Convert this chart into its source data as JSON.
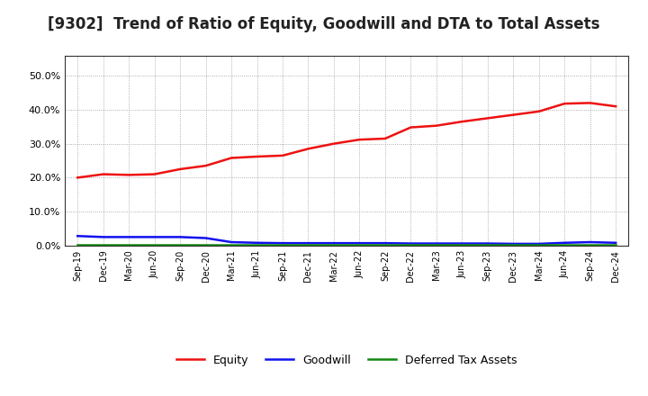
{
  "title": "[9302]  Trend of Ratio of Equity, Goodwill and DTA to Total Assets",
  "x_labels": [
    "Sep-19",
    "Dec-19",
    "Mar-20",
    "Jun-20",
    "Sep-20",
    "Dec-20",
    "Mar-21",
    "Jun-21",
    "Sep-21",
    "Dec-21",
    "Mar-22",
    "Jun-22",
    "Sep-22",
    "Dec-22",
    "Mar-23",
    "Jun-23",
    "Sep-23",
    "Dec-23",
    "Mar-24",
    "Jun-24",
    "Sep-24",
    "Dec-24"
  ],
  "equity": [
    20.0,
    21.0,
    20.8,
    21.0,
    22.5,
    23.5,
    25.8,
    26.2,
    26.5,
    28.5,
    30.0,
    31.2,
    31.5,
    34.8,
    35.3,
    36.5,
    37.5,
    38.5,
    39.5,
    41.8,
    42.0,
    41.0
  ],
  "goodwill": [
    2.8,
    2.5,
    2.5,
    2.5,
    2.5,
    2.2,
    1.0,
    0.8,
    0.7,
    0.7,
    0.7,
    0.7,
    0.7,
    0.6,
    0.6,
    0.6,
    0.6,
    0.5,
    0.5,
    0.8,
    1.0,
    0.8
  ],
  "dta": [
    0.3,
    0.3,
    0.3,
    0.3,
    0.3,
    0.3,
    0.3,
    0.3,
    0.3,
    0.3,
    0.3,
    0.3,
    0.3,
    0.3,
    0.3,
    0.3,
    0.3,
    0.3,
    0.3,
    0.3,
    0.3,
    0.3
  ],
  "equity_color": "#ee1111",
  "goodwill_color": "#1111ee",
  "dta_color": "#118811",
  "background_color": "#ffffff",
  "plot_bg_color": "#ffffff",
  "grid_color": "#999999",
  "ylim": [
    0,
    56
  ],
  "yticks": [
    0.0,
    10.0,
    20.0,
    30.0,
    40.0,
    50.0
  ],
  "title_fontsize": 12,
  "legend_labels": [
    "Equity",
    "Goodwill",
    "Deferred Tax Assets"
  ]
}
